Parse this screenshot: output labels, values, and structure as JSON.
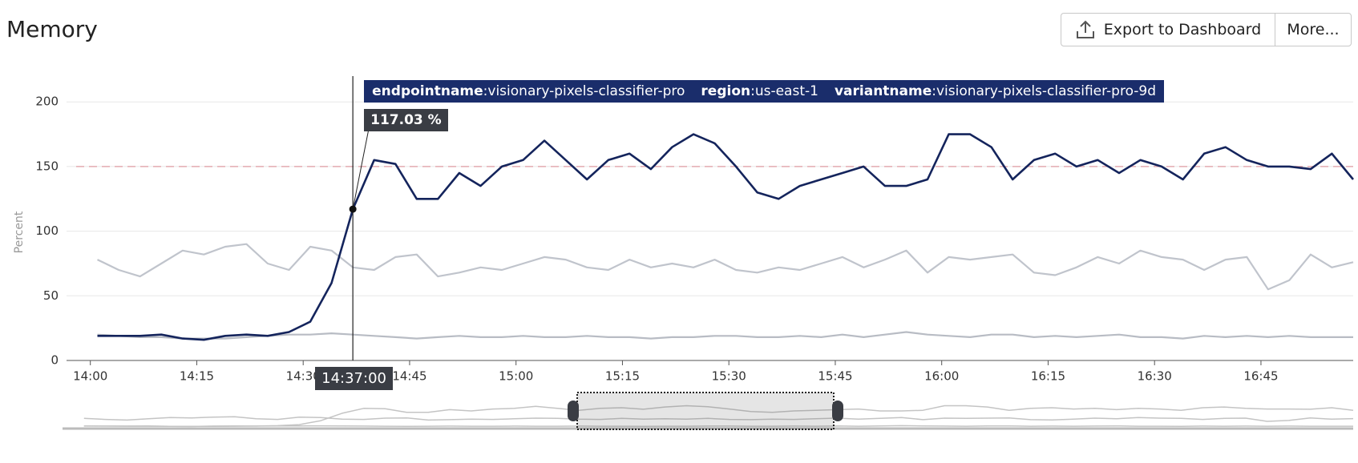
{
  "toolbar": {
    "buttons": [
      "Export to Dashboard",
      "More..."
    ]
  },
  "chart_data": {
    "type": "line",
    "title": "Memory",
    "y_label": "Percent",
    "x": [
      "14:01",
      "14:04",
      "14:07",
      "14:10",
      "14:13",
      "14:16",
      "14:19",
      "14:22",
      "14:25",
      "14:28",
      "14:31",
      "14:34",
      "14:37",
      "14:40",
      "14:43",
      "14:46",
      "14:49",
      "14:52",
      "14:55",
      "14:58",
      "15:01",
      "15:04",
      "15:07",
      "15:10",
      "15:13",
      "15:16",
      "15:19",
      "15:22",
      "15:25",
      "15:28",
      "15:31",
      "15:34",
      "15:37",
      "15:40",
      "15:43",
      "15:46",
      "15:49",
      "15:52",
      "15:55",
      "15:58",
      "16:01",
      "16:04",
      "16:07",
      "16:10",
      "16:13",
      "16:16",
      "16:19",
      "16:22",
      "16:25",
      "16:28",
      "16:31",
      "16:34",
      "16:37",
      "16:40",
      "16:43",
      "16:46",
      "16:49",
      "16:52",
      "16:55",
      "16:58"
    ],
    "series": [
      {
        "color": "#14245c",
        "values": [
          19,
          19,
          19,
          20,
          17,
          16,
          19,
          20,
          19,
          22,
          30,
          60,
          117.03,
          155,
          152,
          125,
          125,
          145,
          135,
          150,
          155,
          170,
          155,
          140,
          155,
          160,
          148,
          165,
          175,
          168,
          150,
          130,
          125,
          135,
          140,
          145,
          150,
          135,
          135,
          140,
          175,
          175,
          165,
          140,
          155,
          160,
          150,
          155,
          145,
          155,
          150,
          140,
          160,
          165,
          155,
          150,
          150,
          148,
          160,
          140
        ]
      },
      {
        "color": "#c0c4cc",
        "values": [
          78,
          70,
          65,
          75,
          85,
          82,
          88,
          90,
          75,
          70,
          88,
          85,
          72,
          70,
          80,
          82,
          65,
          68,
          72,
          70,
          75,
          80,
          78,
          72,
          70,
          78,
          72,
          75,
          72,
          78,
          70,
          68,
          72,
          70,
          75,
          80,
          72,
          78,
          85,
          68,
          80,
          78,
          80,
          82,
          68,
          66,
          72,
          80,
          75,
          85,
          80,
          78,
          70,
          78,
          80,
          55,
          62,
          82,
          72,
          76
        ]
      },
      {
        "color": "#b8bcc4",
        "values": [
          20,
          19,
          18,
          18,
          17,
          17,
          17,
          18,
          19,
          20,
          20,
          21,
          20,
          19,
          18,
          17,
          18,
          19,
          18,
          18,
          19,
          18,
          18,
          19,
          18,
          18,
          17,
          18,
          18,
          19,
          19,
          18,
          18,
          19,
          18,
          20,
          18,
          20,
          22,
          20,
          19,
          18,
          20,
          20,
          18,
          19,
          18,
          19,
          20,
          18,
          18,
          17,
          19,
          18,
          19,
          18,
          19,
          18,
          18,
          18
        ]
      }
    ],
    "xlim": [
      "13:58",
      "16:58"
    ],
    "xticks": [
      "14:00",
      "14:15",
      "14:30",
      "14:45",
      "15:00",
      "15:15",
      "15:30",
      "15:45",
      "16:00",
      "16:15",
      "16:30",
      "16:45"
    ],
    "ylim": [
      0,
      215
    ],
    "yticks": [
      0,
      50,
      100,
      150,
      200
    ],
    "grid": true,
    "threshold": 150,
    "threshold_color": "#e3aab0",
    "tooltip": {
      "tags": [
        {
          "key": "endpointname",
          "value": ":visionary-pixels-classifier-pro"
        },
        {
          "key": "region",
          "value": ":us-east-1"
        },
        {
          "key": "variantname",
          "value": ":visionary-pixels-classifier-pro-9d"
        }
      ],
      "value_label": "117.03 %",
      "time": "14:37:00"
    }
  }
}
